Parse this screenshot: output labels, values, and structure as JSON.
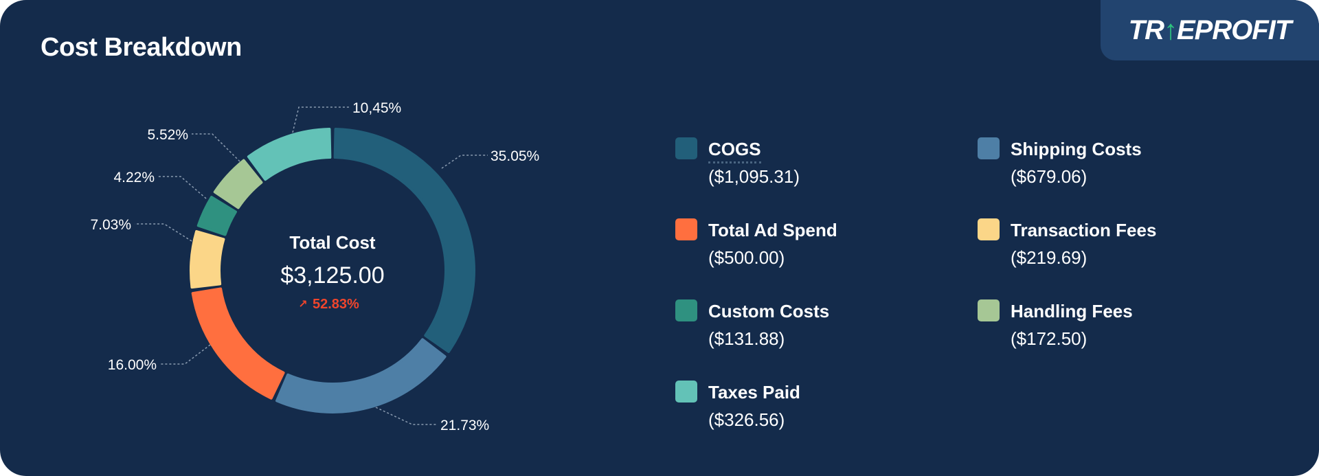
{
  "header": {
    "title": "Cost Breakdown",
    "logo_text": "TRUEPROFIT"
  },
  "center": {
    "label": "Total Cost",
    "value": "$3,125.00",
    "change": "52.83%",
    "change_direction": "up",
    "change_color": "#f0452c",
    "change_icon": "arrow-up-right-icon"
  },
  "chart_data": {
    "type": "pie",
    "variant": "donut",
    "title": "Cost Breakdown",
    "categories": [
      "COGS",
      "Shipping Costs",
      "Total Ad Spend",
      "Transaction Fees",
      "Custom Costs",
      "Handling Fees",
      "Taxes Paid"
    ],
    "values": [
      35.05,
      21.73,
      16.0,
      7.03,
      4.22,
      5.52,
      10.45
    ],
    "data_labels": [
      "35.05%",
      "21.73%",
      "16.00%",
      "7.03%",
      "4.22%",
      "5.52%",
      "10,45%"
    ],
    "colors": [
      "#225f7a",
      "#4e7fa6",
      "#ff6f3f",
      "#fbd688",
      "#2f9180",
      "#a6c795",
      "#63c2b7"
    ],
    "legend_placement": "right"
  },
  "legend": [
    {
      "label": "COGS",
      "value": "($1,095.31)",
      "color": "#225f7a"
    },
    {
      "label": "Shipping Costs",
      "value": "($679.06)",
      "color": "#4e7fa6"
    },
    {
      "label": "Total Ad Spend",
      "value": "($500.00)",
      "color": "#ff6f3f"
    },
    {
      "label": "Transaction Fees",
      "value": "($219.69)",
      "color": "#fbd688"
    },
    {
      "label": "Custom Costs",
      "value": "($131.88)",
      "color": "#2f9180"
    },
    {
      "label": "Handling Fees",
      "value": "($172.50)",
      "color": "#a6c795"
    },
    {
      "label": "Taxes Paid",
      "value": "($326.56)",
      "color": "#63c2b7"
    }
  ]
}
